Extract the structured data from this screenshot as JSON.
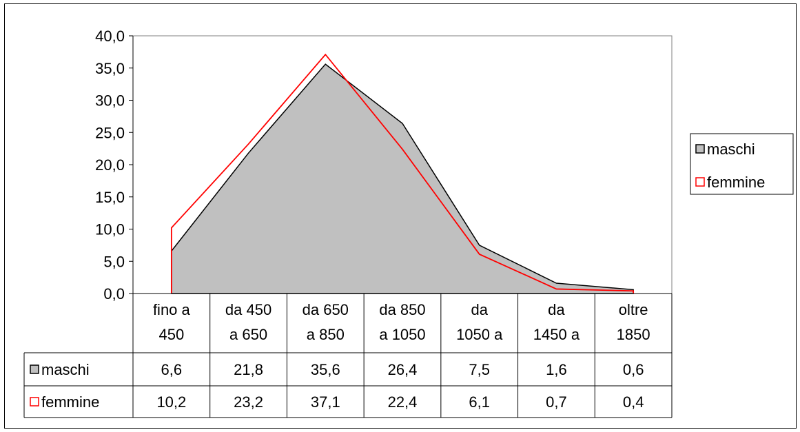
{
  "colors": {
    "maschi_fill": "#c0c0c0",
    "maschi_line": "#000000",
    "femmine_line": "#ff0000",
    "border": "#000000"
  },
  "chart_data": {
    "type": "area",
    "categories": [
      [
        "fino a",
        "450"
      ],
      [
        "da 450",
        "a 650"
      ],
      [
        "da 650",
        "a 850"
      ],
      [
        "da 850",
        "a 1050"
      ],
      [
        "da",
        "1050 a"
      ],
      [
        "da",
        "1450 a"
      ],
      [
        "oltre",
        "1850"
      ]
    ],
    "series": [
      {
        "name": "maschi",
        "style": "filled-area",
        "values": [
          6.6,
          21.8,
          35.6,
          26.4,
          7.5,
          1.6,
          0.6
        ],
        "value_labels": [
          "6,6",
          "21,8",
          "35,6",
          "26,4",
          "7,5",
          "1,6",
          "0,6"
        ]
      },
      {
        "name": "femmine",
        "style": "line",
        "values": [
          10.2,
          23.2,
          37.1,
          22.4,
          6.1,
          0.7,
          0.4
        ],
        "value_labels": [
          "10,2",
          "23,2",
          "37,1",
          "22,4",
          "6,1",
          "0,7",
          "0,4"
        ]
      }
    ],
    "ylim": [
      0,
      40
    ],
    "yticks": [
      "0,0",
      "5,0",
      "10,0",
      "15,0",
      "20,0",
      "25,0",
      "30,0",
      "35,0",
      "40,0"
    ],
    "grid": false,
    "legend": "right",
    "data_table": true
  }
}
